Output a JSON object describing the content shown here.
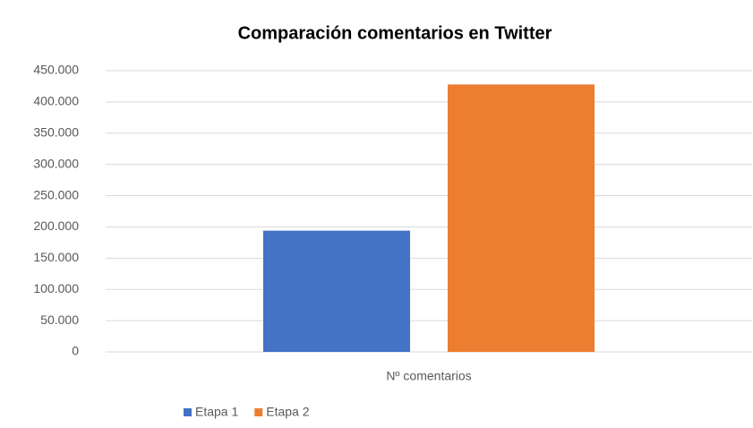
{
  "chart_data": {
    "type": "bar",
    "title": "Comparación comentarios en Twitter",
    "categories": [
      "Nº comentarios"
    ],
    "series": [
      {
        "name": "Etapa 1",
        "color": "#4472c4",
        "values": [
          194000
        ]
      },
      {
        "name": "Etapa 2",
        "color": "#ed7d31",
        "values": [
          428000
        ]
      }
    ],
    "ylim": [
      0,
      450000
    ],
    "yticks": [
      0,
      {
        "value": 50000,
        "label": "50.000"
      },
      {
        "value": 100000,
        "label": "100.000"
      },
      {
        "value": 150000,
        "label": "150.000"
      },
      {
        "value": 200000,
        "label": "200.000"
      },
      {
        "value": 250000,
        "label": "250.000"
      },
      {
        "value": 300000,
        "label": "300.000"
      },
      {
        "value": 350000,
        "label": "350.000"
      },
      {
        "value": 400000,
        "label": "400.000"
      },
      {
        "value": 450000,
        "label": "450.000"
      }
    ],
    "grid": true,
    "legend": "bottom"
  }
}
